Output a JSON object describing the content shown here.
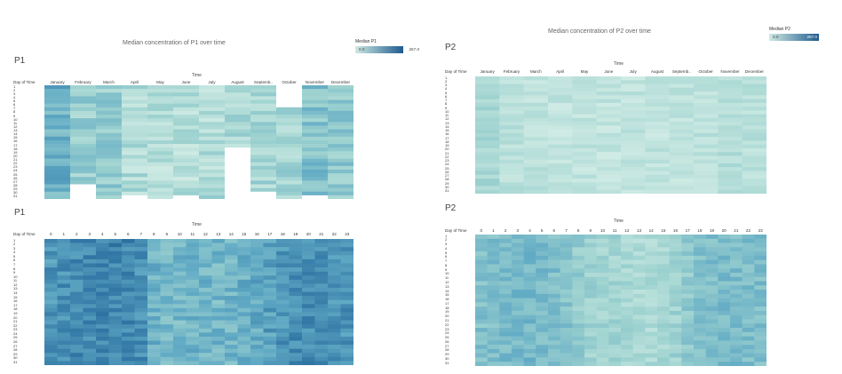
{
  "titles": {
    "p1": "Median concentration of P1 over time",
    "p2": "Median concentration of P2 over time"
  },
  "legends": {
    "p1": {
      "title": "Median P1",
      "min": "0.0",
      "max": "267.0",
      "color_low": "#cfeae3",
      "color_high": "#1f5b8e"
    },
    "p2": {
      "title": "Median P2",
      "min": "0.0",
      "max": "267.0",
      "color_low": "#cfeae3",
      "color_high": "#1f5b8e"
    }
  },
  "sheets": {
    "p1_month": "P1",
    "p1_hour": "P1",
    "p2_month": "P2",
    "p2_hour": "P2"
  },
  "axis": {
    "time_title": "Time",
    "day_of_time": "Day of Time"
  },
  "chart_data": [
    {
      "type": "heatmap",
      "title": "Median concentration of P1 over time",
      "xlabel": "Time",
      "ylabel": "Day of Time",
      "x": [
        "January",
        "February",
        "March",
        "April",
        "May",
        "June",
        "July",
        "August",
        "Septemb..",
        "October",
        "November",
        "December"
      ],
      "y": [
        "1",
        "2",
        "3",
        "4",
        "5",
        "6",
        "7",
        "8",
        "9",
        "10",
        "11",
        "12",
        "13",
        "14",
        "15",
        "16",
        "17",
        "18",
        "19",
        "20",
        "21",
        "22",
        "23",
        "24",
        "25",
        "26",
        "27",
        "28",
        "29",
        "30",
        "31"
      ],
      "color_range": [
        0,
        267
      ],
      "missing": [
        [
          1,
          28
        ],
        [
          7,
          29
        ],
        [
          7,
          30
        ],
        [
          7,
          31
        ],
        [
          8,
          31
        ],
        [
          9,
          1
        ],
        [
          9,
          2
        ],
        [
          9,
          3
        ],
        [
          9,
          4
        ],
        [
          9,
          5
        ],
        [
          9,
          6
        ],
        [
          7,
          18
        ],
        [
          7,
          19
        ],
        [
          7,
          20
        ],
        [
          7,
          21
        ],
        [
          7,
          22
        ],
        [
          7,
          23
        ],
        [
          7,
          24
        ],
        [
          7,
          25
        ],
        [
          7,
          26
        ],
        [
          7,
          27
        ],
        [
          7,
          28
        ],
        [
          3,
          31
        ],
        [
          5,
          31
        ],
        [
          1,
          29
        ],
        [
          1,
          30
        ],
        [
          1,
          31
        ],
        [
          10,
          31
        ],
        [
          8,
          30
        ]
      ]
    },
    {
      "type": "heatmap",
      "title": "",
      "xlabel": "Time",
      "ylabel": "Day of Time",
      "x": [
        "0",
        "1",
        "2",
        "3",
        "4",
        "5",
        "6",
        "7",
        "8",
        "9",
        "10",
        "11",
        "12",
        "13",
        "14",
        "15",
        "16",
        "17",
        "18",
        "19",
        "20",
        "21",
        "22",
        "23"
      ],
      "y": [
        "1",
        "2",
        "3",
        "4",
        "5",
        "6",
        "7",
        "8",
        "9",
        "10",
        "11",
        "12",
        "13",
        "14",
        "15",
        "16",
        "17",
        "18",
        "19",
        "20",
        "21",
        "22",
        "23",
        "24",
        "25",
        "26",
        "27",
        "28",
        "29",
        "30",
        "31"
      ],
      "color_range": [
        0,
        267
      ]
    },
    {
      "type": "heatmap",
      "title": "Median concentration of P2 over time",
      "xlabel": "Time",
      "ylabel": "Day of Time",
      "x": [
        "January",
        "February",
        "March",
        "April",
        "May",
        "June",
        "July",
        "August",
        "Septemb..",
        "October",
        "November",
        "December"
      ],
      "y": [
        "1",
        "2",
        "3",
        "4",
        "5",
        "6",
        "7",
        "8",
        "9",
        "10",
        "11",
        "12",
        "13",
        "14",
        "15",
        "16",
        "17",
        "18",
        "19",
        "20",
        "21",
        "22",
        "23",
        "24",
        "25",
        "26",
        "27",
        "28",
        "29",
        "30",
        "31"
      ],
      "color_range": [
        0,
        267
      ]
    },
    {
      "type": "heatmap",
      "title": "",
      "xlabel": "Time",
      "ylabel": "Day of Time",
      "x": [
        "0",
        "1",
        "2",
        "3",
        "4",
        "5",
        "6",
        "7",
        "8",
        "9",
        "10",
        "11",
        "12",
        "13",
        "14",
        "15",
        "16",
        "17",
        "18",
        "19",
        "20",
        "21",
        "22",
        "23"
      ],
      "y": [
        "1",
        "2",
        "3",
        "4",
        "5",
        "6",
        "7",
        "8",
        "9",
        "10",
        "11",
        "12",
        "13",
        "14",
        "15",
        "16",
        "17",
        "18",
        "19",
        "20",
        "21",
        "22",
        "23",
        "24",
        "25",
        "26",
        "27",
        "28",
        "29",
        "30",
        "31"
      ],
      "color_range": [
        0,
        267
      ]
    }
  ]
}
